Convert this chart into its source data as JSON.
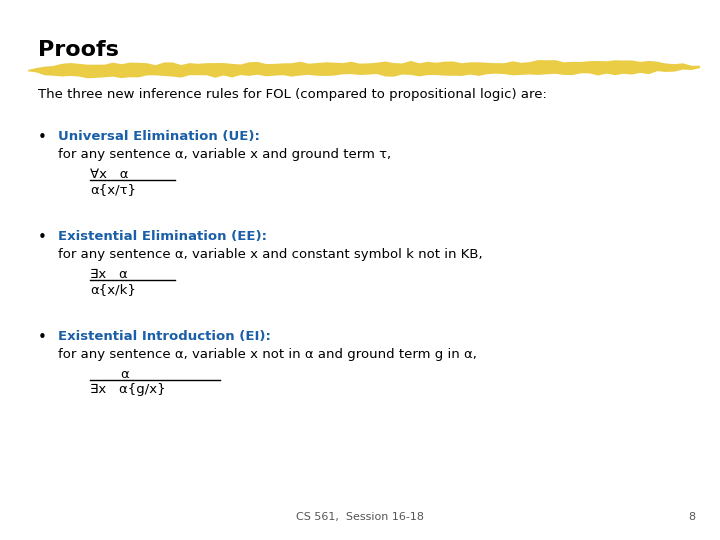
{
  "title": "Proofs",
  "subtitle": "The three new inference rules for FOL (compared to propositional logic) are:",
  "title_color": "#000000",
  "title_fontsize": 16,
  "subtitle_fontsize": 9.5,
  "body_fontsize": 9.5,
  "blue_color": "#1a5fa8",
  "black_color": "#000000",
  "bg_color": "#ffffff",
  "highlight_color": "#e8c830",
  "footer_text": "CS 561,  Session 16-18",
  "page_number": "8",
  "bullet1_header": "Universal Elimination (UE):",
  "bullet1_desc": "for any sentence α, variable x and ground term τ,",
  "bullet1_num": "∀x   α",
  "bullet1_den": "α{x/τ}",
  "bullet2_header": "Existential Elimination (EE):",
  "bullet2_desc": "for any sentence α, variable x and constant symbol k not in KB,",
  "bullet2_num": "∃x   α",
  "bullet2_den": "α{x/k}",
  "bullet3_header": "Existential Introduction (EI):",
  "bullet3_desc": "for any sentence α, variable x not in α and ground term g in α,",
  "bullet3_num": "α",
  "bullet3_den": "∃x   α{g/x}"
}
